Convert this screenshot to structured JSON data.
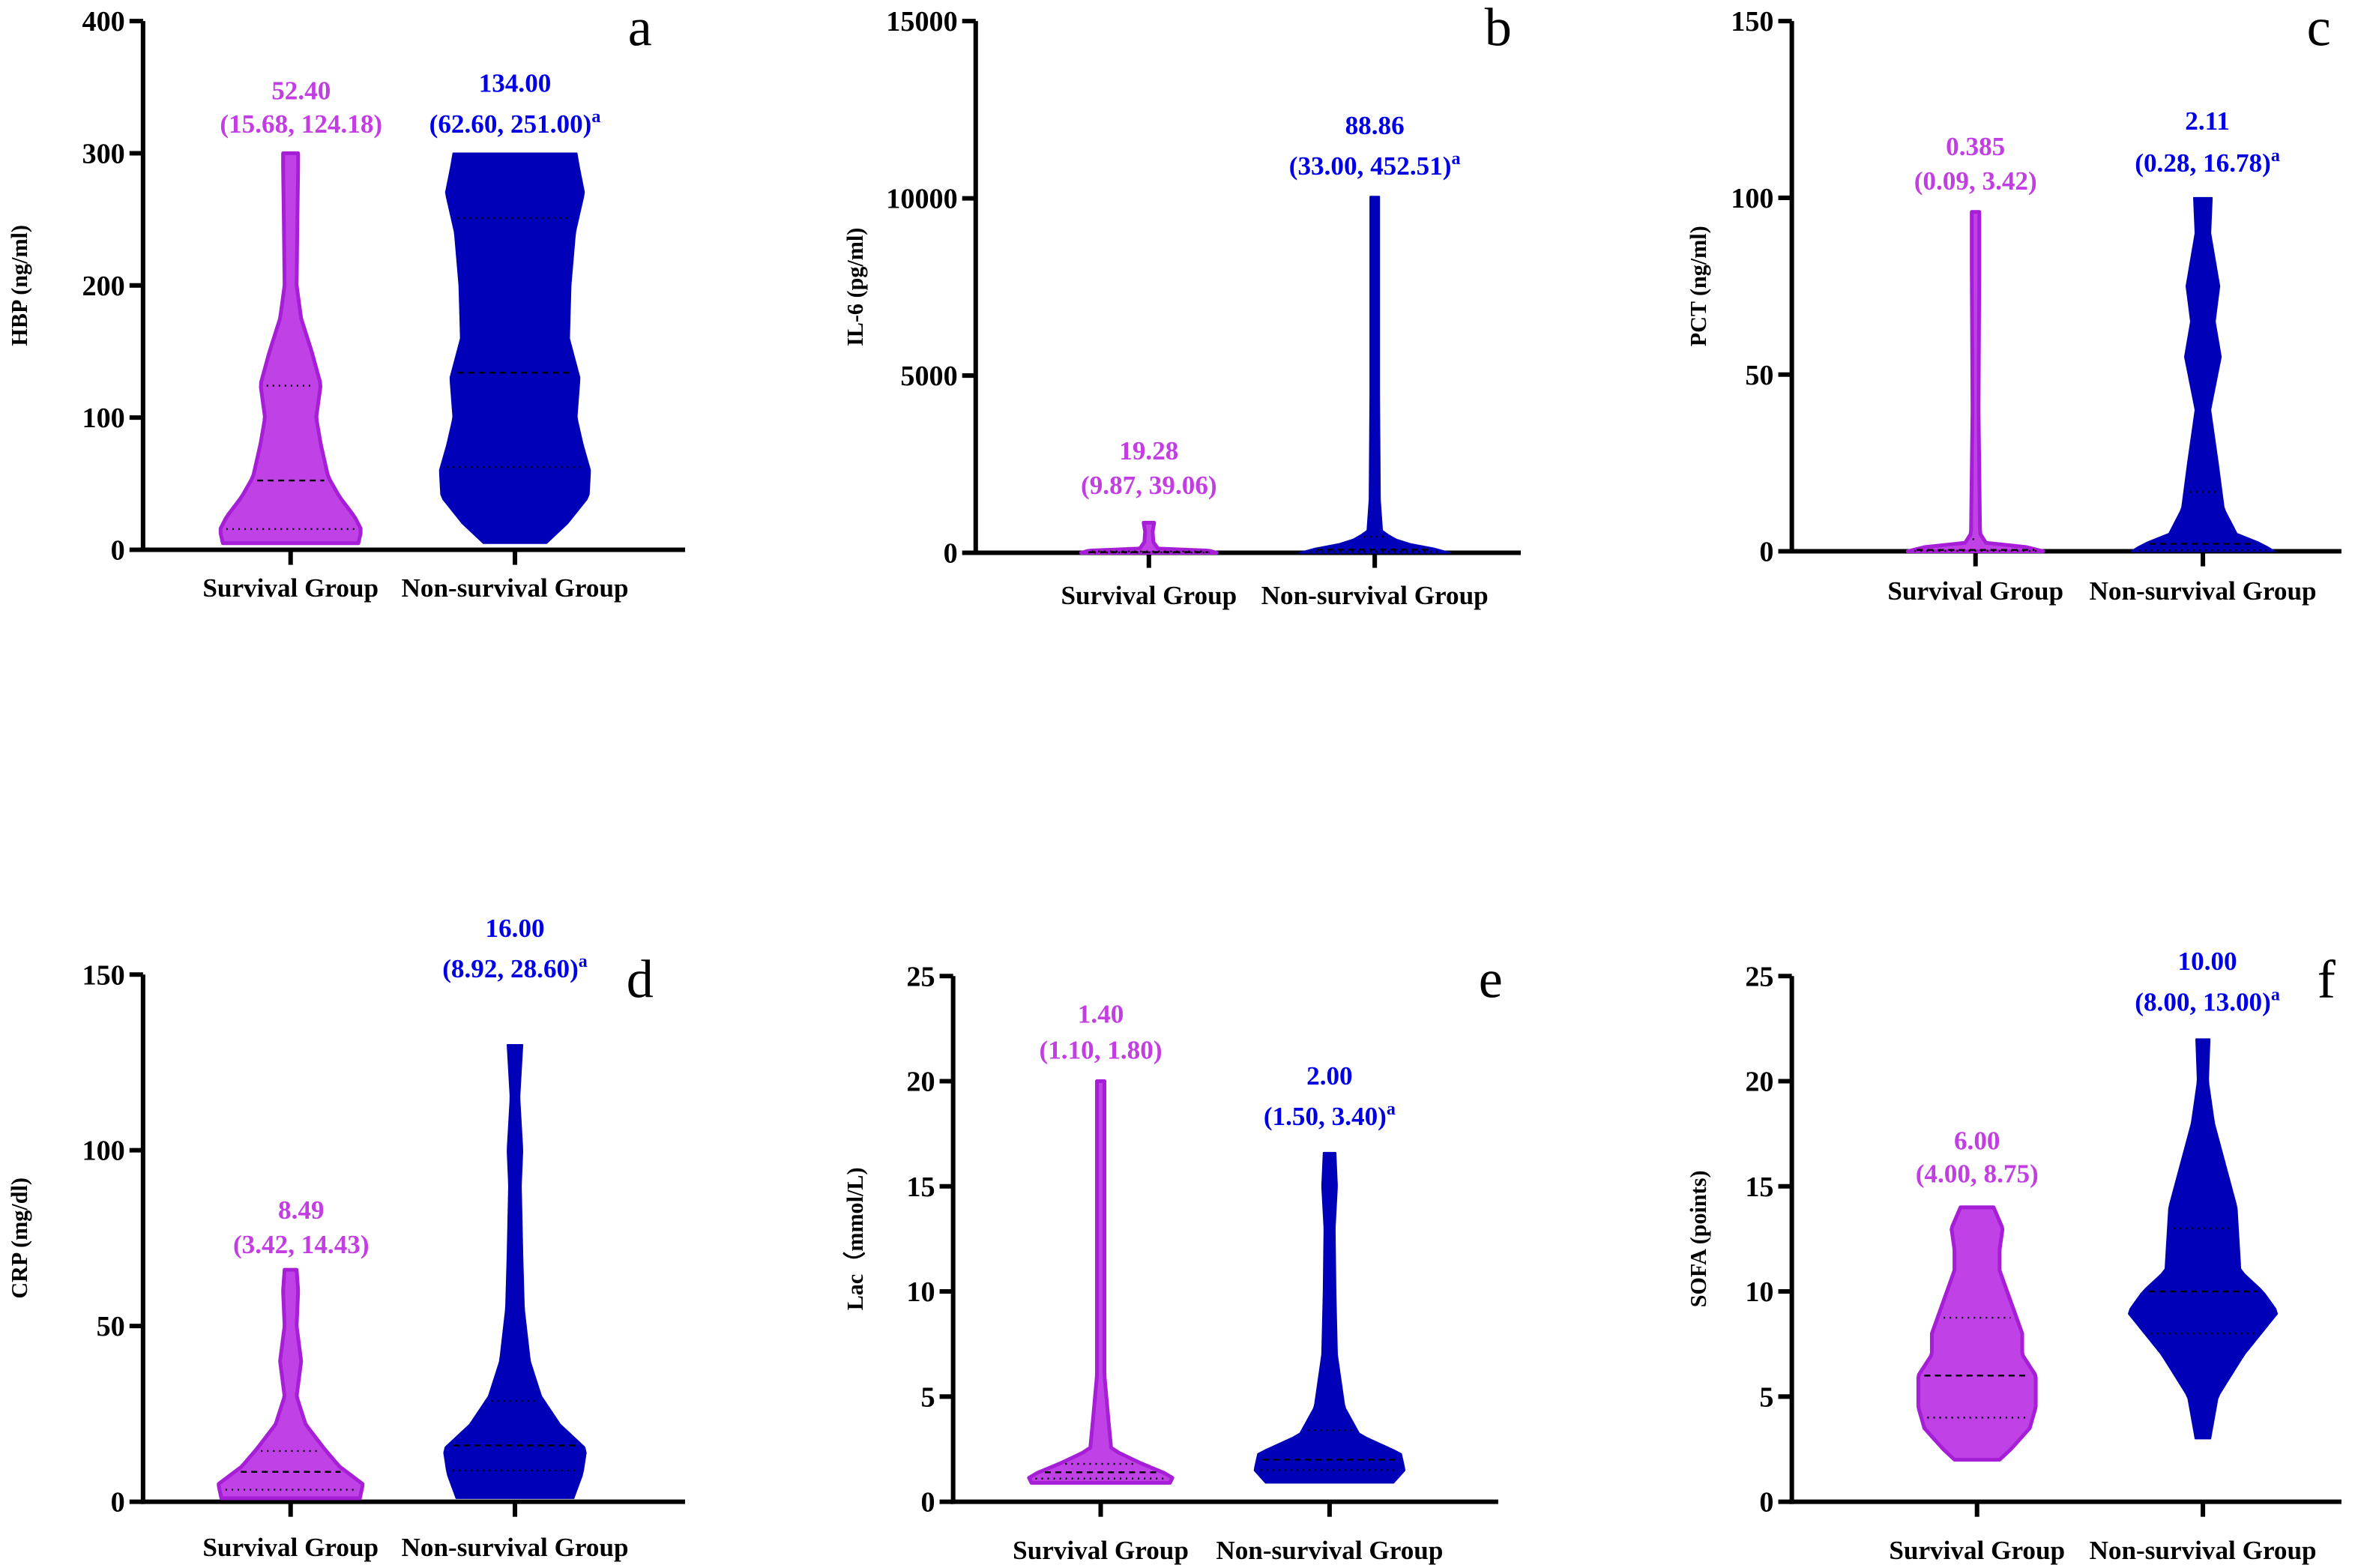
{
  "colors": {
    "survival_fill": "#c042e6",
    "survival_stroke": "#a61fd6",
    "survival_text": "#c23ee2",
    "nonsurvival_fill": "#0000b8",
    "nonsurvival_text": "#0000e6",
    "axis": "#000000"
  },
  "chart_data": [
    {
      "type": "violin",
      "panel_label": "a",
      "ylabel": "HBP (ng/ml)",
      "ylim": [
        0,
        400
      ],
      "yticks": [
        "0",
        "100",
        "200",
        "300",
        "400"
      ],
      "categories": [
        "Survival Group",
        "Non-survival Group"
      ],
      "series": [
        {
          "name": "Survival Group",
          "median": 52.4,
          "q1": 15.68,
          "q3": 124.18,
          "annotation_median": "52.40",
          "annotation_iqr": "(15.68, 124.18)",
          "superscript": "",
          "density": [
            [
              5,
              0.9
            ],
            [
              15,
              0.94
            ],
            [
              25,
              0.85
            ],
            [
              40,
              0.65
            ],
            [
              55,
              0.5
            ],
            [
              80,
              0.4
            ],
            [
              100,
              0.34
            ],
            [
              125,
              0.4
            ],
            [
              150,
              0.28
            ],
            [
              175,
              0.14
            ],
            [
              200,
              0.08
            ],
            [
              250,
              0.09
            ],
            [
              290,
              0.1
            ],
            [
              300,
              0.1
            ]
          ]
        },
        {
          "name": "Non-survival Group",
          "median": 134.0,
          "q1": 62.6,
          "q3": 251.0,
          "annotation_median": "134.00",
          "annotation_iqr": "(62.60, 251.00)",
          "superscript": "a",
          "density": [
            [
              5,
              0.42
            ],
            [
              20,
              0.7
            ],
            [
              40,
              0.98
            ],
            [
              60,
              1.0
            ],
            [
              80,
              0.9
            ],
            [
              100,
              0.82
            ],
            [
              130,
              0.86
            ],
            [
              160,
              0.72
            ],
            [
              200,
              0.74
            ],
            [
              240,
              0.8
            ],
            [
              270,
              0.92
            ],
            [
              290,
              0.85
            ],
            [
              300,
              0.82
            ]
          ]
        }
      ]
    },
    {
      "type": "violin",
      "panel_label": "b",
      "ylabel": "IL-6 (pg/ml)",
      "ylim": [
        0,
        15000
      ],
      "yticks": [
        "0",
        "5000",
        "10000",
        "15000"
      ],
      "categories": [
        "Survival Group",
        "Non-survival Group"
      ],
      "series": [
        {
          "name": "Survival Group",
          "median": 19.28,
          "q1": 9.87,
          "q3": 39.06,
          "annotation_median": "19.28",
          "annotation_iqr": "(9.87, 39.06)",
          "superscript": "",
          "density": [
            [
              0,
              0.9
            ],
            [
              60,
              0.8
            ],
            [
              120,
              0.12
            ],
            [
              300,
              0.06
            ],
            [
              600,
              0.05
            ],
            [
              850,
              0.07
            ]
          ]
        },
        {
          "name": "Non-survival Group",
          "median": 88.86,
          "q1": 33.0,
          "q3": 452.51,
          "annotation_median": "88.86",
          "annotation_iqr": "(33.00, 452.51)",
          "superscript": "a",
          "density": [
            [
              0,
              1.0
            ],
            [
              120,
              0.8
            ],
            [
              300,
              0.35
            ],
            [
              600,
              0.1
            ],
            [
              1500,
              0.07
            ],
            [
              4500,
              0.06
            ],
            [
              7300,
              0.06
            ],
            [
              10050,
              0.06
            ]
          ]
        }
      ]
    },
    {
      "type": "violin",
      "panel_label": "c",
      "ylabel": "PCT (ng/ml)",
      "ylim": [
        0,
        150
      ],
      "yticks": [
        "0",
        "50",
        "100",
        "150"
      ],
      "categories": [
        "Survival Group",
        "Non-survival Group"
      ],
      "series": [
        {
          "name": "Survival Group",
          "median": 0.385,
          "q1": 0.09,
          "q3": 3.42,
          "annotation_median": "0.385",
          "annotation_iqr": "(0.09, 3.42)",
          "superscript": "",
          "density": [
            [
              0,
              0.9
            ],
            [
              1,
              0.8
            ],
            [
              2,
              0.15
            ],
            [
              5,
              0.06
            ],
            [
              40,
              0.04
            ],
            [
              80,
              0.05
            ],
            [
              96,
              0.05
            ]
          ]
        },
        {
          "name": "Non-survival Group",
          "median": 2.11,
          "q1": 0.28,
          "q3": 16.78,
          "annotation_median": "2.11",
          "annotation_iqr": "(0.28, 16.78)",
          "superscript": "a",
          "density": [
            [
              0,
              0.95
            ],
            [
              2,
              0.8
            ],
            [
              5,
              0.45
            ],
            [
              12,
              0.28
            ],
            [
              25,
              0.2
            ],
            [
              40,
              0.1
            ],
            [
              55,
              0.24
            ],
            [
              65,
              0.16
            ],
            [
              75,
              0.22
            ],
            [
              90,
              0.1
            ],
            [
              100,
              0.12
            ]
          ]
        }
      ]
    },
    {
      "type": "violin",
      "panel_label": "d",
      "ylabel": "CRP (mg/dl)",
      "ylim": [
        0,
        150
      ],
      "yticks": [
        "0",
        "50",
        "100",
        "150"
      ],
      "categories": [
        "Survival Group",
        "Non-survival Group"
      ],
      "series": [
        {
          "name": "Survival Group",
          "median": 8.49,
          "q1": 3.42,
          "q3": 14.43,
          "annotation_median": "8.49",
          "annotation_iqr": "(3.42, 14.43)",
          "superscript": "",
          "density": [
            [
              1,
              0.92
            ],
            [
              5,
              0.96
            ],
            [
              10,
              0.65
            ],
            [
              15,
              0.45
            ],
            [
              22,
              0.2
            ],
            [
              30,
              0.08
            ],
            [
              40,
              0.14
            ],
            [
              50,
              0.08
            ],
            [
              60,
              0.1
            ],
            [
              66,
              0.08
            ]
          ]
        },
        {
          "name": "Non-survival Group",
          "median": 16.0,
          "q1": 8.92,
          "q3": 28.6,
          "annotation_median": "16.00",
          "annotation_iqr": "(8.92, 28.60)",
          "superscript": "a",
          "density": [
            [
              1,
              0.78
            ],
            [
              8,
              0.9
            ],
            [
              15,
              0.95
            ],
            [
              22,
              0.6
            ],
            [
              30,
              0.35
            ],
            [
              40,
              0.2
            ],
            [
              55,
              0.12
            ],
            [
              70,
              0.1
            ],
            [
              90,
              0.08
            ],
            [
              100,
              0.1
            ],
            [
              115,
              0.06
            ],
            [
              130,
              0.1
            ]
          ]
        }
      ]
    },
    {
      "type": "violin",
      "panel_label": "e",
      "ylabel": "Lac（mmol/L)",
      "ylim": [
        0,
        25
      ],
      "yticks": [
        "0",
        "5",
        "10",
        "15",
        "20",
        "25"
      ],
      "categories": [
        "Survival Group",
        "Non-survival Group"
      ],
      "series": [
        {
          "name": "Survival Group",
          "median": 1.4,
          "q1": 1.1,
          "q3": 1.8,
          "annotation_median": "1.40",
          "annotation_iqr": "(1.10, 1.80)",
          "superscript": "",
          "density": [
            [
              0.9,
              0.92
            ],
            [
              1.2,
              0.96
            ],
            [
              1.8,
              0.55
            ],
            [
              2.5,
              0.14
            ],
            [
              4,
              0.1
            ],
            [
              6,
              0.05
            ],
            [
              13,
              0.05
            ],
            [
              20,
              0.05
            ]
          ]
        },
        {
          "name": "Non-survival Group",
          "median": 2.0,
          "q1": 1.5,
          "q3": 3.4,
          "annotation_median": "2.00",
          "annotation_iqr": "(1.50, 3.40)",
          "superscript": "a",
          "density": [
            [
              0.9,
              0.85
            ],
            [
              1.5,
              1.0
            ],
            [
              2.3,
              0.95
            ],
            [
              3.2,
              0.4
            ],
            [
              4.5,
              0.2
            ],
            [
              7,
              0.1
            ],
            [
              10,
              0.08
            ],
            [
              13,
              0.07
            ],
            [
              15,
              0.1
            ],
            [
              16.6,
              0.08
            ]
          ]
        }
      ]
    },
    {
      "type": "violin",
      "panel_label": "f",
      "ylabel": "SOFA (points)",
      "ylim": [
        0,
        25
      ],
      "yticks": [
        "0",
        "5",
        "10",
        "15",
        "20",
        "25"
      ],
      "categories": [
        "Survival Group",
        "Non-survival Group"
      ],
      "series": [
        {
          "name": "Survival Group",
          "median": 6.0,
          "q1": 4.0,
          "q3": 8.75,
          "annotation_median": "6.00",
          "annotation_iqr": "(4.00, 8.75)",
          "superscript": "",
          "density": [
            [
              2,
              0.3
            ],
            [
              2.5,
              0.45
            ],
            [
              3.5,
              0.7
            ],
            [
              4.5,
              0.78
            ],
            [
              6,
              0.78
            ],
            [
              7,
              0.6
            ],
            [
              8,
              0.6
            ],
            [
              9.5,
              0.45
            ],
            [
              11,
              0.3
            ],
            [
              12,
              0.3
            ],
            [
              13,
              0.34
            ],
            [
              14,
              0.22
            ]
          ]
        },
        {
          "name": "Non-survival Group",
          "median": 10.0,
          "q1": 8.0,
          "q3": 13.0,
          "annotation_median": "10.00",
          "annotation_iqr": "(8.00, 13.00)",
          "superscript": "a",
          "density": [
            [
              3,
              0.1
            ],
            [
              5,
              0.2
            ],
            [
              7,
              0.55
            ],
            [
              9,
              1.0
            ],
            [
              10,
              0.8
            ],
            [
              11,
              0.5
            ],
            [
              14,
              0.45
            ],
            [
              16,
              0.3
            ],
            [
              18,
              0.15
            ],
            [
              20,
              0.07
            ],
            [
              22,
              0.09
            ]
          ]
        }
      ]
    }
  ]
}
